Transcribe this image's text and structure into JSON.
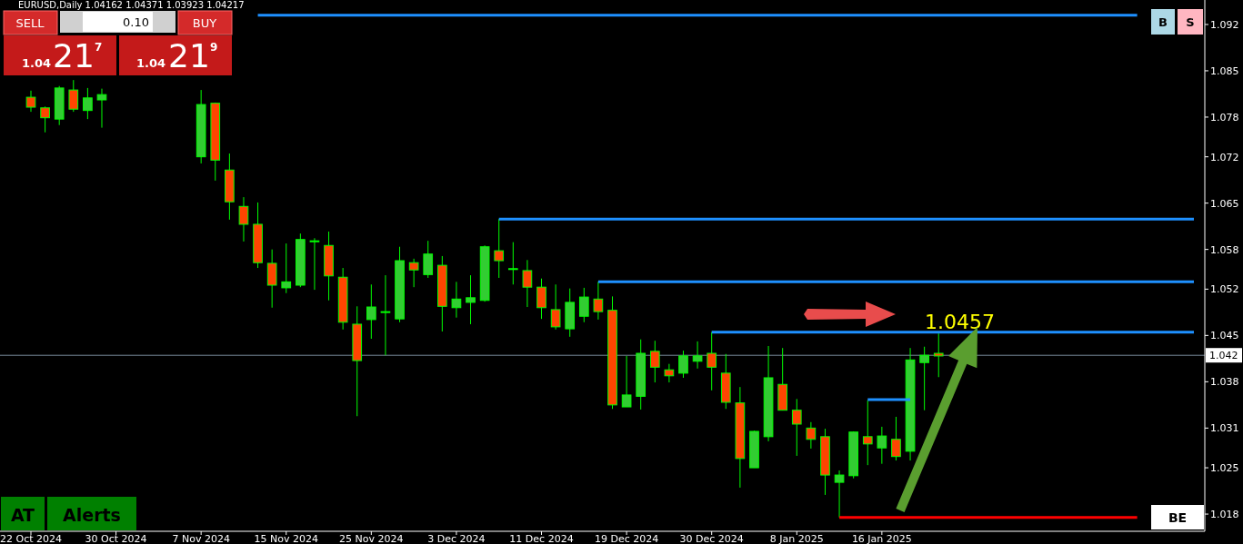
{
  "chart_data": {
    "type": "candlestick",
    "title": "EURUSD,Daily  1.04162 1.04371 1.03923 1.04217",
    "categories": [
      "22 Oct 2024",
      null,
      null,
      null,
      null,
      null,
      "30 Oct 2024",
      null,
      null,
      null,
      null,
      null,
      "7 Nov 2024",
      null,
      null,
      null,
      null,
      null,
      "15 Nov 2024",
      null,
      null,
      null,
      null,
      null,
      "25 Nov 2024",
      null,
      null,
      null,
      null,
      null,
      "3 Dec 2024",
      null,
      null,
      null,
      null,
      null,
      "11 Dec 2024",
      null,
      null,
      null,
      null,
      null,
      "19 Dec 2024",
      null,
      null,
      null,
      null,
      null,
      "30 Dec 2024",
      null,
      null,
      null,
      null,
      null,
      "8 Jan 2025",
      null,
      null,
      null,
      null,
      null,
      "16 Jan 2025",
      null,
      null,
      null,
      null,
      null,
      null,
      null,
      null,
      null,
      null,
      null,
      null,
      null,
      null,
      null,
      null,
      null,
      null,
      null,
      null,
      null,
      null
    ],
    "ohlc": [
      [
        1.081,
        1.082,
        1.0788,
        1.0795
      ],
      [
        1.0794,
        1.0796,
        1.0757,
        1.0779
      ],
      [
        1.0777,
        1.0827,
        1.0768,
        1.0824
      ],
      [
        1.0821,
        1.0836,
        1.0788,
        1.0792
      ],
      [
        1.079,
        1.0824,
        1.0777,
        1.0809
      ],
      [
        1.0806,
        1.0823,
        1.0764,
        1.0814
      ],
      null,
      null,
      null,
      null,
      null,
      null,
      [
        1.072,
        1.0821,
        1.071,
        1.0799
      ],
      [
        1.0801,
        1.0802,
        1.0684,
        1.0715
      ],
      [
        1.07,
        1.0725,
        1.0625,
        1.0652
      ],
      [
        1.0645,
        1.0659,
        1.0592,
        1.0618
      ],
      [
        1.0618,
        1.0651,
        1.0552,
        1.056
      ],
      [
        1.0559,
        1.058,
        1.0492,
        1.0526
      ],
      [
        1.0522,
        1.0589,
        1.0514,
        1.0531
      ],
      [
        1.0526,
        1.0604,
        1.0523,
        1.0595
      ],
      [
        1.0593,
        1.0597,
        1.0519,
        1.0593
      ],
      [
        1.0586,
        1.0607,
        1.0503,
        1.054
      ],
      [
        1.0538,
        1.0552,
        1.0459,
        1.047
      ],
      [
        1.0467,
        1.0494,
        1.0328,
        1.0412
      ],
      [
        1.0474,
        1.0527,
        1.0445,
        1.0493
      ],
      [
        1.0486,
        1.0541,
        1.042,
        1.0486
      ],
      [
        1.0475,
        1.0584,
        1.047,
        1.0563
      ],
      [
        1.056,
        1.0566,
        1.0523,
        1.0549
      ],
      [
        1.0542,
        1.0593,
        1.0537,
        1.0573
      ],
      [
        1.0556,
        1.057,
        1.0456,
        1.0494
      ],
      [
        1.0492,
        1.0531,
        1.0477,
        1.0505
      ],
      [
        1.05,
        1.0541,
        1.0467,
        1.0507
      ],
      [
        1.0503,
        1.0586,
        1.0501,
        1.0584
      ],
      [
        1.0578,
        1.0626,
        1.0537,
        1.0563
      ],
      [
        1.0551,
        1.0591,
        1.0527,
        1.0551
      ],
      [
        1.0548,
        1.0564,
        1.0493,
        1.0523
      ],
      [
        1.0523,
        1.0536,
        1.0475,
        1.0492
      ],
      [
        1.0489,
        1.0527,
        1.0459,
        1.0463
      ],
      [
        1.046,
        1.0521,
        1.0448,
        1.05
      ],
      [
        1.0479,
        1.0522,
        1.047,
        1.0508
      ],
      [
        1.0505,
        1.0531,
        1.0474,
        1.0486
      ],
      [
        1.0488,
        1.0509,
        1.0339,
        1.0345
      ],
      [
        1.0342,
        1.0419,
        1.0342,
        1.036
      ],
      [
        1.0358,
        1.0444,
        1.0338,
        1.0423
      ],
      [
        1.0426,
        1.0442,
        1.0379,
        1.0402
      ],
      [
        1.0398,
        1.0407,
        1.0379,
        1.0389
      ],
      [
        1.0393,
        1.0427,
        1.0386,
        1.0419
      ],
      [
        1.0411,
        1.0441,
        1.04,
        1.0419
      ],
      [
        1.0423,
        1.0455,
        1.0367,
        1.0402
      ],
      [
        1.0393,
        1.0422,
        1.0339,
        1.0349
      ],
      [
        1.0348,
        1.0372,
        1.022,
        1.0264
      ],
      [
        1.025,
        1.0306,
        1.025,
        1.0305
      ],
      [
        1.0297,
        1.0434,
        1.029,
        1.0386
      ],
      [
        1.0376,
        1.0431,
        1.0337,
        1.0337
      ],
      [
        1.0337,
        1.0354,
        1.0268,
        1.0316
      ],
      [
        1.031,
        1.0319,
        1.0279,
        1.0293
      ],
      [
        1.0297,
        1.0309,
        1.0209,
        1.0239
      ],
      [
        1.0228,
        1.0246,
        1.0175,
        1.0239
      ],
      [
        1.0238,
        1.0305,
        1.0234,
        1.0304
      ],
      [
        1.0297,
        1.0352,
        1.0254,
        1.0286
      ],
      [
        1.028,
        1.0312,
        1.0256,
        1.0298
      ],
      [
        1.0293,
        1.0327,
        1.0261,
        1.0267
      ],
      [
        1.0275,
        1.0431,
        1.0261,
        1.0413
      ],
      [
        1.0409,
        1.0433,
        1.0337,
        1.042
      ],
      [
        1.0423,
        1.0453,
        1.0387,
        1.0419
      ],
      null,
      null,
      null,
      null,
      null,
      null,
      null,
      null,
      null,
      null,
      null,
      null,
      null,
      null,
      null,
      null,
      null,
      null
    ],
    "colors": [
      "#ff4500",
      "#ff4500",
      "#32cd32",
      "#ff4500",
      "#32cd32",
      "#32cd32",
      null,
      null,
      null,
      null,
      null,
      null,
      "#32cd32",
      "#ff4500",
      "#ff4500",
      "#ff4500",
      "#ff4500",
      "#ff4500",
      "#32cd32",
      "#32cd32",
      "#32cd32",
      "#ff4500",
      "#ff4500",
      "#ff4500",
      "#32cd32",
      "#32cd32",
      "#32cd32",
      "#ff4500",
      "#32cd32",
      "#ff4500",
      "#32cd32",
      "#32cd32",
      "#32cd32",
      "#ff4500",
      "#32cd32",
      "#ff4500",
      "#ff4500",
      "#ff4500",
      "#32cd32",
      "#32cd32",
      "#ff4500",
      "#ff4500",
      "#32cd32",
      "#32cd32",
      "#ff4500",
      "#ff4500",
      "#32cd32",
      "#32cd32",
      "#ff4500",
      "#ff4500",
      "#ff4500",
      "#32cd32",
      "#32cd32",
      "#ff4500",
      "#ff4500",
      "#ff4500",
      "#ff4500",
      "#32cd32",
      "#32cd32",
      "#ff4500",
      "#32cd32",
      "#ff4500",
      "#32cd32",
      "#32cd32",
      "#ff4500",
      null,
      null,
      null,
      null,
      null,
      null,
      null,
      null,
      null,
      null,
      null,
      null,
      null,
      null,
      null,
      null,
      null,
      null
    ],
    "series": [
      {
        "type": "line",
        "color": "#1e90ff",
        "values": [
          null,
          null,
          null,
          null,
          null,
          null,
          null,
          null,
          null,
          null,
          null,
          null,
          null,
          null,
          null,
          null,
          1.0934,
          1.0934,
          1.0934,
          1.0934,
          1.0934,
          1.0934,
          1.0934,
          1.0934,
          1.0934,
          1.0934,
          1.0934,
          1.0934,
          1.0934,
          1.0934,
          1.0934,
          1.0934,
          1.0934,
          1.0934,
          1.0934,
          1.0934,
          1.0934,
          1.0934,
          1.0934,
          1.0934,
          1.0934,
          1.0934,
          1.0934,
          1.0934,
          1.0934,
          1.0934,
          1.0934,
          1.0934,
          1.0934,
          1.0934,
          1.0934,
          1.0934,
          1.0934,
          1.0934,
          1.0934,
          1.0934,
          1.0934,
          1.0934,
          1.0934,
          1.0934,
          1.0934,
          1.0934,
          1.0934,
          1.0934,
          1.0934,
          1.0934,
          1.0934,
          1.0934,
          1.0934,
          1.0934,
          1.0934,
          1.0934,
          1.0934,
          1.0934,
          1.0934,
          1.0934,
          1.0934,
          1.0934,
          1.0934,
          null,
          null,
          null,
          null
        ]
      },
      {
        "type": "line",
        "color": "#1e90ff",
        "values": [
          null,
          null,
          null,
          null,
          null,
          null,
          null,
          null,
          null,
          null,
          null,
          null,
          null,
          null,
          null,
          null,
          null,
          null,
          null,
          null,
          null,
          null,
          null,
          null,
          null,
          null,
          null,
          null,
          null,
          null,
          null,
          null,
          null,
          1.0626,
          1.0626,
          1.0626,
          1.0626,
          1.0626,
          1.0626,
          1.0626,
          1.0626,
          1.0626,
          1.0626,
          1.0626,
          1.0626,
          1.0626,
          1.0626,
          1.0626,
          1.0626,
          1.0626,
          1.0626,
          1.0626,
          1.0626,
          1.0626,
          1.0626,
          1.0626,
          1.0626,
          1.0626,
          1.0626,
          1.0626,
          1.0626,
          1.0626,
          1.0626,
          1.0626,
          1.0626,
          1.0626,
          1.0626,
          1.0626,
          1.0626,
          1.0626,
          1.0626,
          1.0626,
          1.0626,
          1.0626,
          1.0626,
          1.0626,
          1.0626,
          1.0626,
          1.0626,
          1.0626,
          1.0626,
          1.0626,
          1.0626
        ]
      },
      {
        "type": "line",
        "color": "#1e90ff",
        "values": [
          null,
          null,
          null,
          null,
          null,
          null,
          null,
          null,
          null,
          null,
          null,
          null,
          null,
          null,
          null,
          null,
          null,
          null,
          null,
          null,
          null,
          null,
          null,
          null,
          null,
          null,
          null,
          null,
          null,
          null,
          null,
          null,
          null,
          null,
          null,
          null,
          null,
          null,
          null,
          null,
          1.0531,
          1.0531,
          1.0531,
          1.0531,
          1.0531,
          1.0531,
          1.0531,
          1.0531,
          1.0531,
          1.0531,
          1.0531,
          1.0531,
          1.0531,
          1.0531,
          1.0531,
          1.0531,
          1.0531,
          1.0531,
          1.0531,
          1.0531,
          1.0531,
          1.0531,
          1.0531,
          1.0531,
          1.0531,
          1.0531,
          1.0531,
          1.0531,
          1.0531,
          1.0531,
          1.0531,
          1.0531,
          1.0531,
          1.0531,
          1.0531,
          1.0531,
          1.0531,
          1.0531,
          1.0531,
          1.0531,
          1.0531,
          1.0531,
          1.0531
        ]
      },
      {
        "type": "line",
        "color": "#1e90ff",
        "values": [
          null,
          null,
          null,
          null,
          null,
          null,
          null,
          null,
          null,
          null,
          null,
          null,
          null,
          null,
          null,
          null,
          null,
          null,
          null,
          null,
          null,
          null,
          null,
          null,
          null,
          null,
          null,
          null,
          null,
          null,
          null,
          null,
          null,
          null,
          null,
          null,
          null,
          null,
          null,
          null,
          null,
          null,
          null,
          null,
          null,
          null,
          null,
          null,
          1.0455,
          1.0455,
          1.0455,
          1.0455,
          1.0455,
          1.0455,
          1.0455,
          1.0455,
          1.0455,
          1.0455,
          1.0455,
          1.0455,
          1.0455,
          1.0455,
          1.0455,
          1.0455,
          1.0455,
          1.0455,
          1.0455,
          1.0455,
          1.0455,
          1.0455,
          1.0455,
          1.0455,
          1.0455,
          1.0455,
          1.0455,
          1.0455,
          1.0455,
          1.0455,
          1.0455,
          1.0455,
          1.0455,
          1.0455,
          1.0455
        ]
      },
      {
        "type": "line",
        "color": "#1e90ff",
        "values": [
          null,
          null,
          null,
          null,
          null,
          null,
          null,
          null,
          null,
          null,
          null,
          null,
          null,
          null,
          null,
          null,
          null,
          null,
          null,
          null,
          null,
          null,
          null,
          null,
          null,
          null,
          null,
          null,
          null,
          null,
          null,
          null,
          null,
          null,
          null,
          null,
          null,
          null,
          null,
          null,
          null,
          null,
          null,
          null,
          null,
          null,
          null,
          null,
          null,
          null,
          null,
          null,
          null,
          null,
          null,
          null,
          null,
          null,
          null,
          1.0353,
          1.0353,
          1.0353,
          1.0353,
          null,
          null,
          null,
          null,
          null,
          null,
          null,
          null,
          null,
          null,
          null,
          null,
          null,
          null,
          null,
          null,
          null,
          null,
          null,
          null
        ]
      },
      {
        "type": "line",
        "color": "#ff0000",
        "values": [
          null,
          null,
          null,
          null,
          null,
          null,
          null,
          null,
          null,
          null,
          null,
          null,
          null,
          null,
          null,
          null,
          null,
          null,
          null,
          null,
          null,
          null,
          null,
          null,
          null,
          null,
          null,
          null,
          null,
          null,
          null,
          null,
          null,
          null,
          null,
          null,
          null,
          null,
          null,
          null,
          null,
          null,
          null,
          null,
          null,
          null,
          null,
          null,
          null,
          null,
          null,
          null,
          null,
          null,
          null,
          null,
          null,
          1.0175,
          1.0175,
          1.0175,
          1.0175,
          1.0175,
          1.0175,
          1.0175,
          1.0175,
          1.0175,
          1.0175,
          1.0175,
          1.0175,
          1.0175,
          1.0175,
          1.0175,
          1.0175,
          1.0175,
          1.0175,
          1.0175,
          1.0175,
          1.0175,
          1.0175,
          null,
          null,
          null,
          null
        ]
      }
    ],
    "ylim": [
      1.0154,
      1.0957
    ],
    "yticks": [
      1.018,
      1.025,
      1.031,
      1.038,
      1.045,
      1.052,
      1.058,
      1.065,
      1.072,
      1.078,
      1.085,
      1.092
    ],
    "ref_lines": [
      {
        "axis": "y",
        "value": 1.042,
        "label": "1.042",
        "color": "#778899"
      }
    ],
    "annotations": [
      "SELL",
      "0.10",
      "BUY",
      "1.04",
      "21",
      "7",
      "1.04",
      "21",
      "9",
      "AT",
      "Alerts",
      "B",
      "S",
      "BE",
      "1.0457"
    ],
    "grid": false
  }
}
